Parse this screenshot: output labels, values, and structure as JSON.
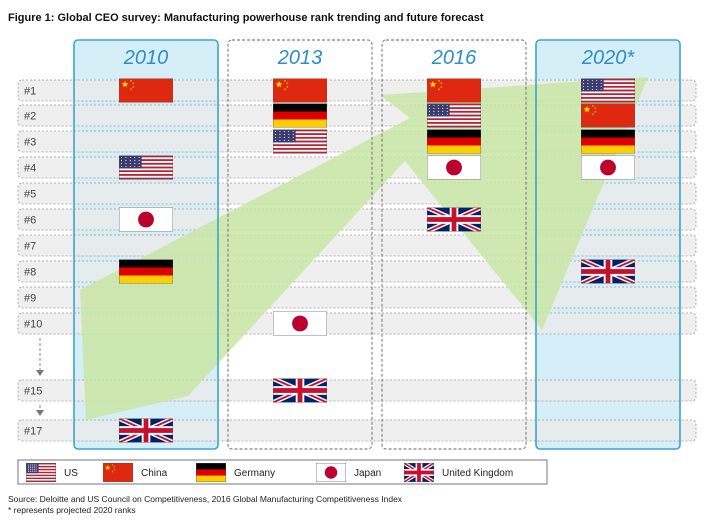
{
  "title": "Figure 1: Global CEO survey: Manufacturing powerhouse rank trending and future forecast",
  "source": "Source: Deloitte and US Council on Competitiveness, 2016 Global Manufacturing Competitiveness Index",
  "footnote": "* represents projected 2020 ranks",
  "colors": {
    "row_fill": "#ebebeb",
    "highlight_fill": "#d6eef8",
    "highlight_border": "#3aa6cc",
    "year_label": "#2a8fc6",
    "arrow": "#c9e6a6"
  },
  "chart_data": {
    "type": "table",
    "columns": [
      "2010",
      "2013",
      "2016",
      "2020*"
    ],
    "highlighted_columns": [
      "2010",
      "2020*"
    ],
    "rank_labels": [
      "#1",
      "#2",
      "#3",
      "#4",
      "#5",
      "#6",
      "#7",
      "#8",
      "#9",
      "#10",
      "#15",
      "#17"
    ],
    "rank_values": [
      1,
      2,
      3,
      4,
      5,
      6,
      7,
      8,
      9,
      10,
      15,
      17
    ],
    "gaps_after": [
      "#10",
      "#15"
    ],
    "legend": [
      {
        "code": "US",
        "label": "US"
      },
      {
        "code": "CN",
        "label": "China"
      },
      {
        "code": "DE",
        "label": "Germany"
      },
      {
        "code": "JP",
        "label": "Japan"
      },
      {
        "code": "UK",
        "label": "United Kingdom"
      }
    ],
    "placements": [
      {
        "column": "2010",
        "rank": 1,
        "country": "CN"
      },
      {
        "column": "2010",
        "rank": 4,
        "country": "US"
      },
      {
        "column": "2010",
        "rank": 6,
        "country": "JP"
      },
      {
        "column": "2010",
        "rank": 8,
        "country": "DE"
      },
      {
        "column": "2010",
        "rank": 17,
        "country": "UK"
      },
      {
        "column": "2013",
        "rank": 1,
        "country": "CN"
      },
      {
        "column": "2013",
        "rank": 2,
        "country": "DE"
      },
      {
        "column": "2013",
        "rank": 3,
        "country": "US"
      },
      {
        "column": "2013",
        "rank": 10,
        "country": "JP"
      },
      {
        "column": "2013",
        "rank": 15,
        "country": "UK"
      },
      {
        "column": "2016",
        "rank": 1,
        "country": "CN"
      },
      {
        "column": "2016",
        "rank": 2,
        "country": "US"
      },
      {
        "column": "2016",
        "rank": 3,
        "country": "DE"
      },
      {
        "column": "2016",
        "rank": 4,
        "country": "JP"
      },
      {
        "column": "2016",
        "rank": 6,
        "country": "UK"
      },
      {
        "column": "2020*",
        "rank": 1,
        "country": "US"
      },
      {
        "column": "2020*",
        "rank": 2,
        "country": "CN"
      },
      {
        "column": "2020*",
        "rank": 3,
        "country": "DE"
      },
      {
        "column": "2020*",
        "rank": 4,
        "country": "JP"
      },
      {
        "column": "2020*",
        "rank": 8,
        "country": "UK"
      }
    ]
  }
}
